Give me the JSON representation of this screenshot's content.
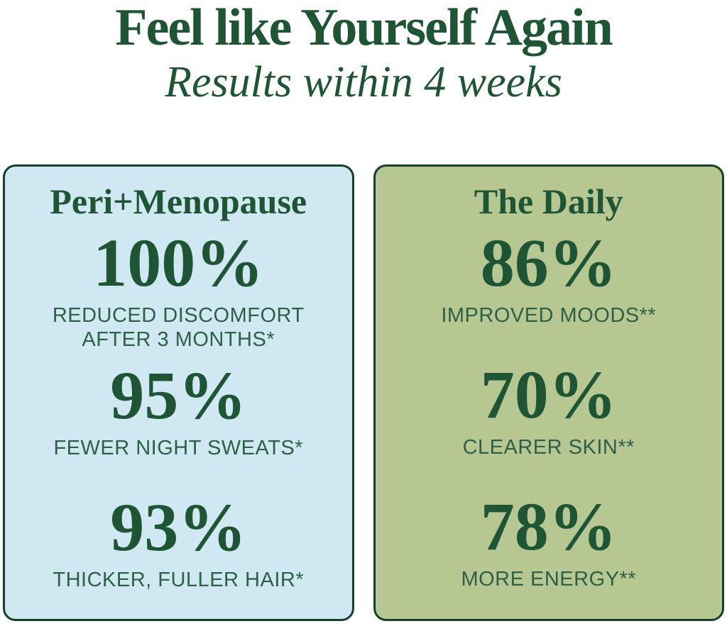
{
  "header": {
    "title": "Feel like Yourself Again",
    "subtitle": "Results within 4 weeks"
  },
  "cards": [
    {
      "title": "Peri+Menopause",
      "stats": [
        {
          "value": "100%",
          "label": "REDUCED DISCOMFORT AFTER 3 MONTHS*"
        },
        {
          "value": "95%",
          "label": "FEWER NIGHT SWEATS*"
        },
        {
          "value": "93%",
          "label": "THICKER, FULLER HAIR*"
        }
      ]
    },
    {
      "title": "The Daily",
      "stats": [
        {
          "value": "86%",
          "label": "IMPROVED MOODS**"
        },
        {
          "value": "70%",
          "label": "CLEARER SKIN**"
        },
        {
          "value": "78%",
          "label": "MORE ENERGY**"
        }
      ]
    }
  ],
  "colors": {
    "title_green": "#1e5535",
    "label_green": "#2e5f47",
    "border_green": "#183f2a",
    "left_card_bg": "#d0e8f1",
    "right_card_bg": "#b7c791",
    "page_bg": "#ffffff"
  }
}
